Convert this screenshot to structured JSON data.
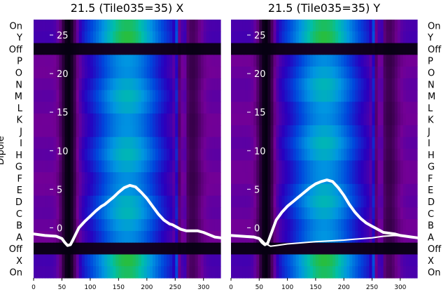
{
  "chart_data": [
    {
      "type": "heatmap",
      "title": "21.5 (Tile035=35) X",
      "ylabel": "Dipole",
      "row_labels": [
        "On",
        "Y",
        "Off",
        "P",
        "O",
        "N",
        "M",
        "L",
        "K",
        "J",
        "I",
        "H",
        "G",
        "F",
        "E",
        "D",
        "C",
        "B",
        "A",
        "Off",
        "X",
        "On"
      ],
      "x_ticks": [
        0,
        50,
        100,
        150,
        200,
        250,
        300
      ],
      "y_ticks": [
        0,
        5,
        10,
        15,
        20,
        25
      ],
      "xlim": [
        0,
        330
      ],
      "ylim": [
        -6.5,
        27
      ],
      "overlay_series": [
        {
          "x": [
            0,
            20,
            40,
            50,
            55,
            60,
            65,
            70,
            80,
            90,
            100,
            110,
            120,
            125,
            130,
            135,
            140,
            150,
            160,
            170,
            180,
            190,
            200,
            210,
            220,
            230,
            240,
            245,
            250,
            255,
            260,
            265,
            270,
            280,
            290,
            300,
            310,
            320,
            330
          ],
          "y": [
            -0.8,
            -1.0,
            -1.1,
            -1.4,
            -1.9,
            -2.3,
            -2.2,
            -1.5,
            0.0,
            0.8,
            1.5,
            2.2,
            2.8,
            3.0,
            3.3,
            3.6,
            3.9,
            4.6,
            5.2,
            5.5,
            5.3,
            4.6,
            3.8,
            2.8,
            1.8,
            1.0,
            0.5,
            0.4,
            0.2,
            0.0,
            -0.2,
            -0.3,
            -0.4,
            -0.4,
            -0.4,
            -0.6,
            -0.9,
            -1.2,
            -1.3
          ]
        }
      ]
    },
    {
      "type": "heatmap",
      "title": "21.5 (Tile035=35) Y",
      "row_labels": [
        "On",
        "Y",
        "Off",
        "P",
        "O",
        "N",
        "M",
        "L",
        "K",
        "J",
        "I",
        "H",
        "G",
        "F",
        "E",
        "D",
        "C",
        "B",
        "A",
        "Off",
        "X",
        "On"
      ],
      "x_ticks": [
        0,
        50,
        100,
        150,
        200,
        250,
        300
      ],
      "y_ticks": [
        0,
        5,
        10,
        15,
        20,
        25
      ],
      "xlim": [
        0,
        330
      ],
      "ylim": [
        -6.5,
        27
      ],
      "overlay_series": [
        {
          "x": [
            0,
            20,
            40,
            50,
            55,
            60,
            65,
            70,
            80,
            90,
            100,
            110,
            120,
            125,
            130,
            135,
            140,
            150,
            160,
            170,
            180,
            190,
            200,
            210,
            220,
            230,
            240,
            245,
            250,
            255,
            260,
            265,
            270,
            280,
            290,
            300,
            310,
            320,
            330
          ],
          "y": [
            -1.0,
            -1.1,
            -1.2,
            -1.4,
            -1.9,
            -2.2,
            -2.0,
            -1.0,
            1.0,
            2.0,
            2.8,
            3.4,
            4.0,
            4.3,
            4.6,
            4.9,
            5.2,
            5.7,
            6.0,
            6.2,
            6.0,
            5.2,
            4.2,
            3.0,
            2.0,
            1.2,
            0.6,
            0.4,
            0.2,
            0.0,
            -0.2,
            -0.4,
            -0.6,
            -0.7,
            -0.8,
            -1.0,
            -1.1,
            -1.2,
            -1.3
          ]
        },
        {
          "x": [
            0,
            40,
            50,
            55,
            60,
            70,
            80,
            100,
            150,
            200,
            250,
            270,
            290,
            310,
            330
          ],
          "y": [
            -1.0,
            -1.1,
            -1.3,
            -1.6,
            -2.0,
            -2.4,
            -2.3,
            -2.1,
            -1.8,
            -1.6,
            -1.3,
            -1.1,
            -1.0,
            -1.1,
            -1.3
          ]
        }
      ]
    }
  ]
}
